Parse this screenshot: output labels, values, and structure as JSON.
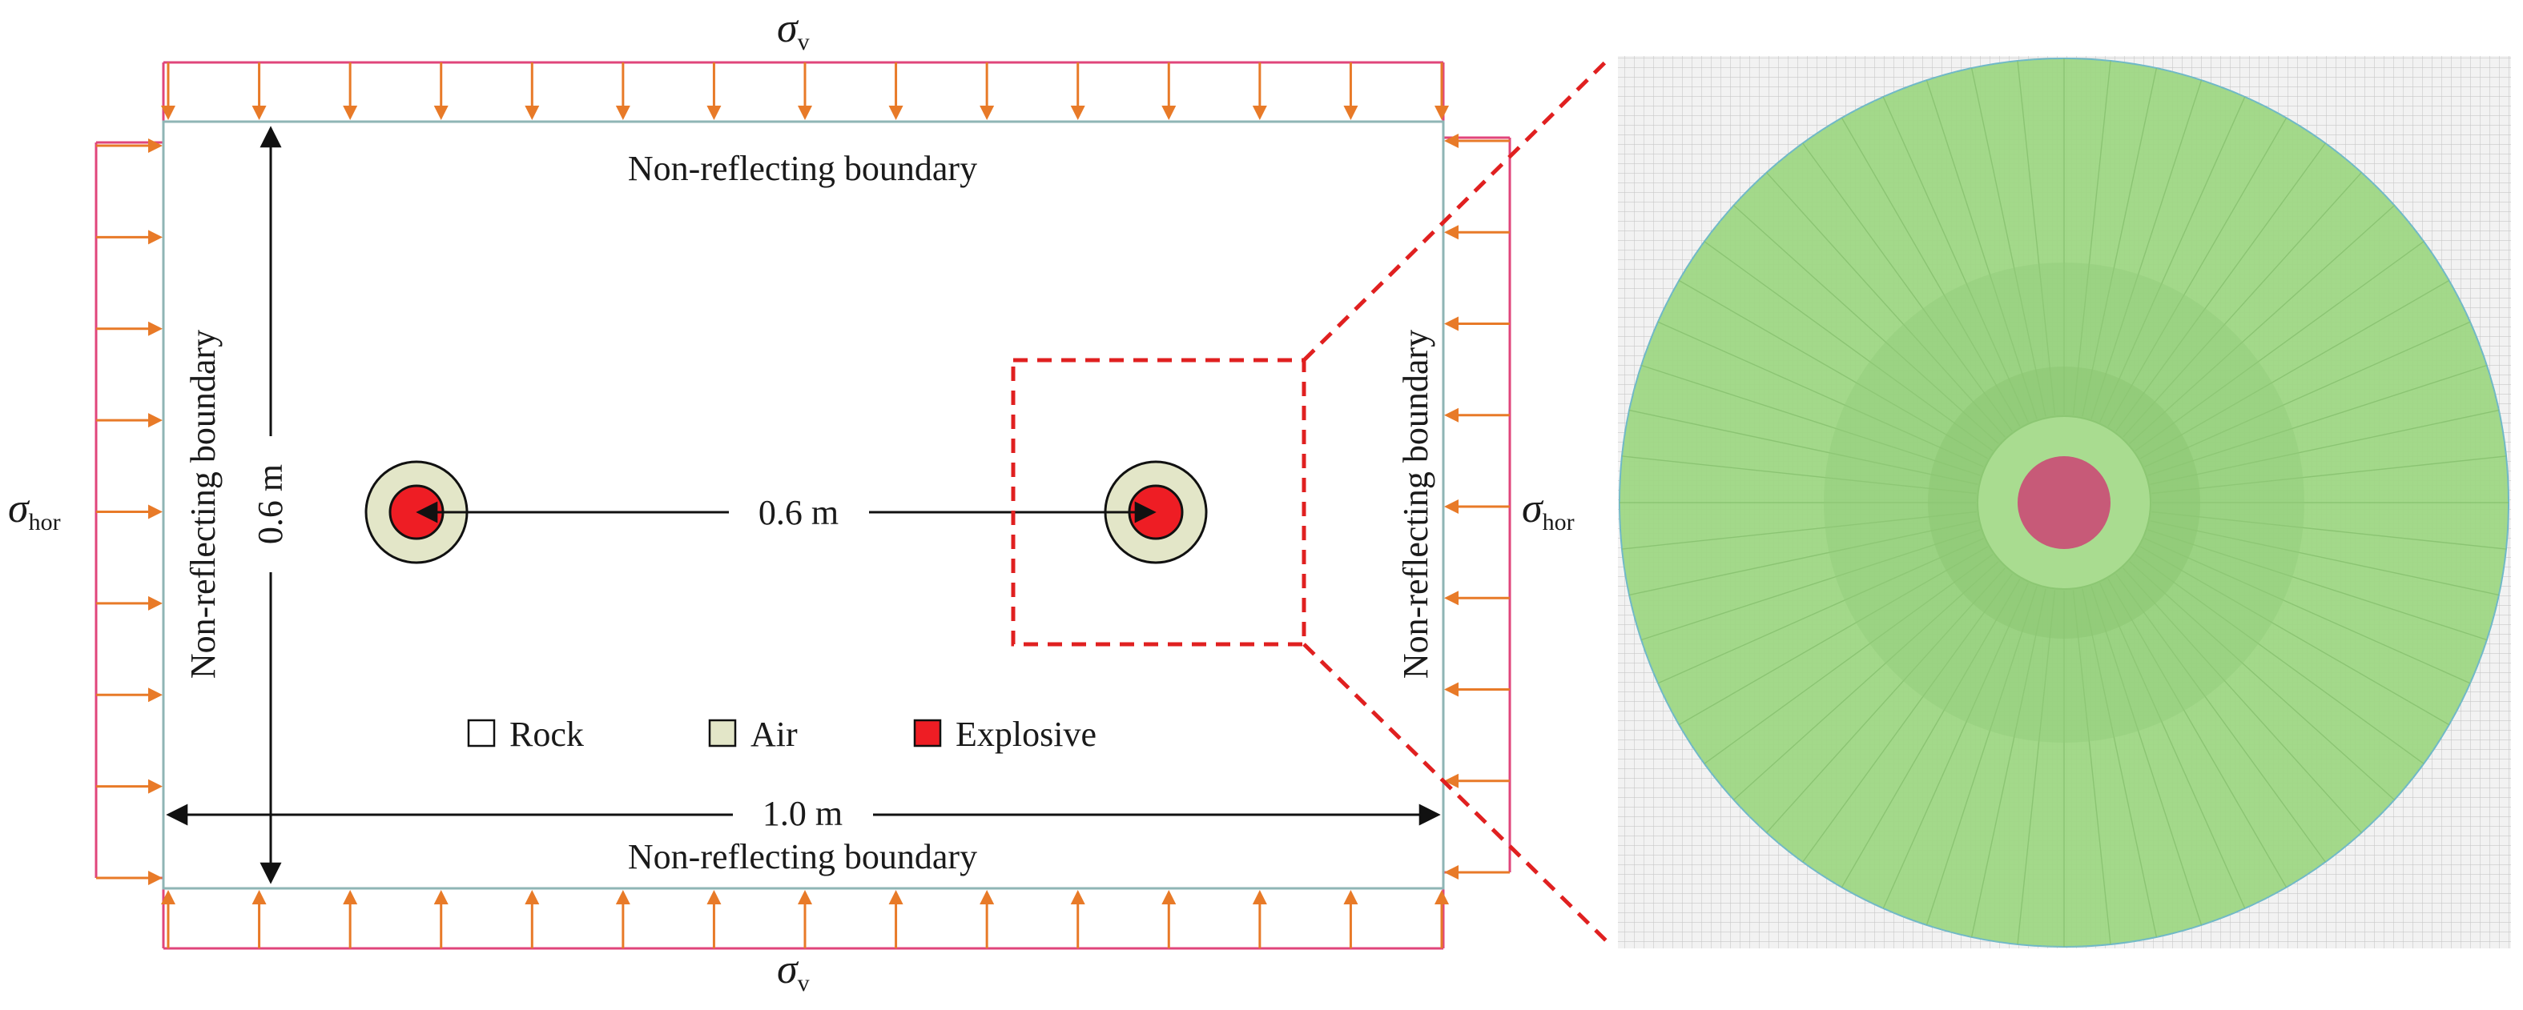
{
  "labels": {
    "boundary_top": "Non-reflecting boundary",
    "boundary_bottom": "Non-reflecting boundary",
    "boundary_left": "Non-reflecting boundary",
    "boundary_right": "Non-reflecting boundary",
    "dim_height": "0.6 m",
    "dim_spacing": "0.6 m",
    "dim_width": "1.0 m"
  },
  "stress": {
    "vertical_symbol": "σ",
    "vertical_sub": "v",
    "horizontal_symbol": "σ",
    "horizontal_sub": "hor"
  },
  "legend": [
    {
      "label": "Rock",
      "color": "#ffffff"
    },
    {
      "label": "Air",
      "color": "#e3e6c8"
    },
    {
      "label": "Explosive",
      "color": "#ee1d24"
    }
  ],
  "colors": {
    "load_line": "#e0457b",
    "load_arrow": "#e87a28",
    "model_border": "#8fb5b5",
    "zoom_box": "#e02020",
    "mesh_green": "#a3d98a",
    "mesh_charge": "#c75a78",
    "mesh_grid": "#c8c8c8"
  }
}
